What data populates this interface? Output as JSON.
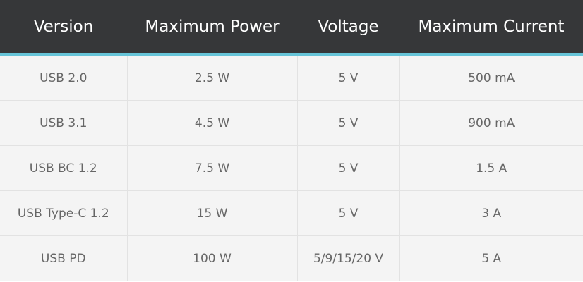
{
  "table": {
    "headers": [
      "Version",
      "Maximum Power",
      "Voltage",
      "Maximum Current"
    ],
    "rows": [
      [
        "USB 2.0",
        "2.5 W",
        "5 V",
        "500 mA"
      ],
      [
        "USB 3.1",
        "4.5 W",
        "5 V",
        "900 mA"
      ],
      [
        "USB BC 1.2",
        "7.5 W",
        "5 V",
        "1.5 A"
      ],
      [
        "USB Type-C 1.2",
        "15 W",
        "5 V",
        "3 A"
      ],
      [
        "USB PD",
        "100 W",
        "5/9/15/20 V",
        "5 A"
      ]
    ]
  },
  "colors": {
    "header_bg": "#363739",
    "accent": "#66c4d8",
    "row_bg": "#f4f4f4",
    "text": "#666666"
  }
}
